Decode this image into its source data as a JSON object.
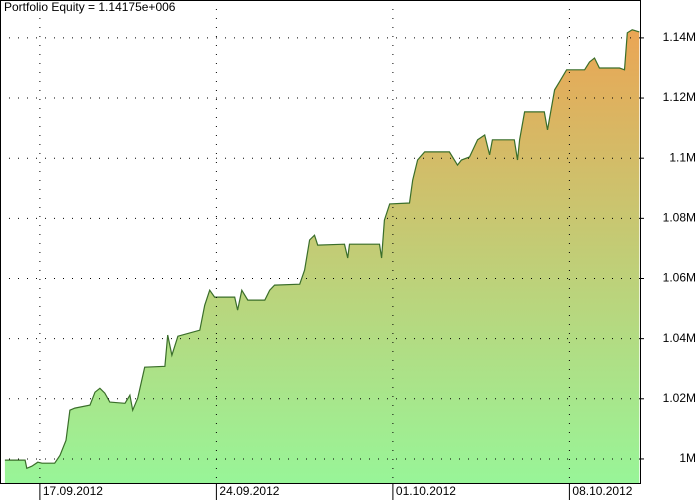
{
  "chart_data": {
    "type": "area",
    "title": "Portfolio Equity = 1.14175e+006",
    "x": [
      -0.99,
      -0.42,
      -0.37,
      -0.23,
      -0.06,
      0.06,
      0.42,
      0.57,
      0.74,
      0.85,
      0.99,
      1.42,
      1.56,
      1.7,
      1.84,
      1.98,
      2.41,
      2.55,
      2.63,
      2.77,
      2.97,
      3.54,
      3.62,
      3.74,
      3.91,
      4.53,
      4.67,
      4.81,
      4.95,
      5.52,
      5.6,
      5.72,
      5.89,
      6.37,
      6.51,
      6.65,
      7.36,
      7.5,
      7.64,
      7.78,
      7.87,
      8.63,
      8.72,
      8.77,
      9.62,
      9.68,
      9.76,
      9.91,
      10.47,
      10.56,
      10.7,
      10.9,
      11.6,
      11.83,
      11.94,
      12.17,
      12.4,
      12.6,
      12.74,
      12.82,
      13.44,
      13.53,
      13.59,
      13.73,
      14.29,
      14.38,
      14.58,
      14.72,
      14.92,
      15.43,
      15.57,
      15.71,
      15.85,
      16.42,
      16.56,
      16.64,
      16.78,
      16.98
    ],
    "values": [
      999600,
      999600,
      996900,
      997600,
      998900,
      998600,
      998600,
      1001200,
      1006200,
      1016200,
      1016900,
      1017900,
      1022200,
      1023500,
      1021900,
      1018900,
      1018500,
      1021200,
      1016200,
      1020200,
      1030500,
      1030800,
      1041200,
      1034500,
      1040800,
      1042800,
      1051100,
      1056100,
      1053800,
      1053800,
      1049500,
      1056100,
      1052800,
      1052800,
      1056100,
      1057800,
      1058100,
      1062800,
      1072800,
      1074400,
      1071100,
      1071400,
      1066800,
      1071400,
      1071400,
      1066800,
      1079400,
      1084800,
      1085100,
      1092700,
      1099400,
      1102100,
      1102100,
      1097700,
      1099400,
      1100400,
      1106100,
      1107700,
      1101100,
      1106100,
      1106100,
      1099400,
      1106100,
      1115400,
      1115400,
      1109400,
      1122700,
      1125400,
      1129400,
      1129400,
      1132000,
      1133300,
      1130000,
      1130000,
      1129400,
      1141700,
      1142700,
      1142000
    ],
    "color": "#3a6e2a",
    "fill_top": "#f0a050",
    "fill_bottom": "#98f598",
    "xlim": [
      -1.13,
      17.0
    ],
    "xticks": [
      {
        "value": 0,
        "label": "17.09.2012"
      },
      {
        "value": 5,
        "label": "24.09.2012"
      },
      {
        "value": 10,
        "label": "01.10.2012"
      },
      {
        "value": 15,
        "label": "08.10.2012"
      }
    ],
    "ylim": [
      992000,
      1152600
    ],
    "yticks": [
      {
        "value": 1000000,
        "label": "1M"
      },
      {
        "value": 1020000,
        "label": "1.02M"
      },
      {
        "value": 1040000,
        "label": "1.04M"
      },
      {
        "value": 1060000,
        "label": "1.06M"
      },
      {
        "value": 1080000,
        "label": "1.08M"
      },
      {
        "value": 1100000,
        "label": "1.1M"
      },
      {
        "value": 1120000,
        "label": "1.12M"
      },
      {
        "value": 1140000,
        "label": "1.14M"
      }
    ],
    "grid": true
  }
}
